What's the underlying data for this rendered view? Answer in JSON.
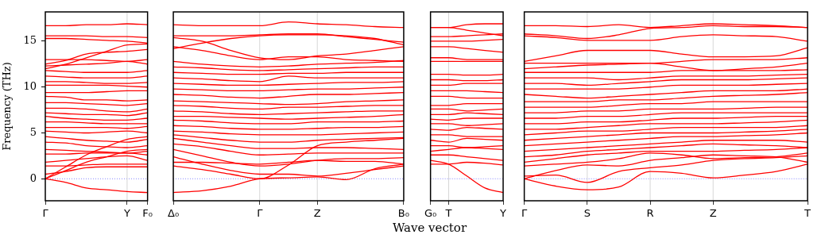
{
  "chart_data": [
    {
      "type": "line",
      "ylabel": "Frequency (THz)",
      "color": "#ff0000",
      "ylim": [
        -2.4,
        18.2
      ],
      "yticks": [
        0,
        5,
        10,
        15
      ],
      "categories": [
        "Γ",
        null,
        null,
        null,
        "Y",
        "F₀"
      ],
      "ref_lines": [
        {
          "axis": "y",
          "value": 0,
          "color": "#6666ff",
          "line_style": "dotted"
        },
        {
          "axis": "x",
          "value": "Y",
          "color": "#cccccc",
          "line_style": "solid"
        }
      ],
      "series": [
        {
          "values": [
            0,
            -0.4,
            -1.0,
            -1.2,
            -1.4,
            -1.5
          ]
        },
        {
          "values": [
            0,
            0.9,
            1.8,
            2.4,
            3.0,
            3.2
          ]
        },
        {
          "values": [
            0,
            1.3,
            2.6,
            3.5,
            4.3,
            4.6
          ]
        },
        {
          "values": [
            0.5,
            0.8,
            1.2,
            1.3,
            1.3,
            1.3
          ]
        },
        {
          "values": [
            1.4,
            1.4,
            1.5,
            1.6,
            1.6,
            1.6
          ]
        },
        {
          "values": [
            1.8,
            2.0,
            2.2,
            2.4,
            2.5,
            2.0
          ]
        },
        {
          "values": [
            2.7,
            2.7,
            2.8,
            2.8,
            2.8,
            2.6
          ]
        },
        {
          "values": [
            3.2,
            3.1,
            3.0,
            2.9,
            2.8,
            3.0
          ]
        },
        {
          "values": [
            4.0,
            3.9,
            3.6,
            3.5,
            3.4,
            3.6
          ]
        },
        {
          "values": [
            4.6,
            4.4,
            4.2,
            4.1,
            4.0,
            4.3
          ]
        },
        {
          "values": [
            5.2,
            5.1,
            5.0,
            5.1,
            5.2,
            5.0
          ]
        },
        {
          "values": [
            5.6,
            5.6,
            5.6,
            5.6,
            5.5,
            5.7
          ]
        },
        {
          "values": [
            6.2,
            6.2,
            6.1,
            6.0,
            6.0,
            6.0
          ]
        },
        {
          "values": [
            6.8,
            6.6,
            6.5,
            6.4,
            6.4,
            6.6
          ]
        },
        {
          "values": [
            7.2,
            7.1,
            7.0,
            7.0,
            6.9,
            7.2
          ]
        },
        {
          "values": [
            7.7,
            7.7,
            7.6,
            7.4,
            7.3,
            7.6
          ]
        },
        {
          "values": [
            8.3,
            8.3,
            8.2,
            8.1,
            8.0,
            8.2
          ]
        },
        {
          "values": [
            9.0,
            8.9,
            8.6,
            8.6,
            8.5,
            8.6
          ]
        },
        {
          "values": [
            9.4,
            9.4,
            9.4,
            9.5,
            9.6,
            9.6
          ]
        },
        {
          "values": [
            10.2,
            10.2,
            10.2,
            10.2,
            10.1,
            10.0
          ]
        },
        {
          "values": [
            10.6,
            10.6,
            10.5,
            10.4,
            10.4,
            10.5
          ]
        },
        {
          "values": [
            11.2,
            11.1,
            11.0,
            11.0,
            11.0,
            11.2
          ]
        },
        {
          "values": [
            11.8,
            11.7,
            11.6,
            11.6,
            11.6,
            11.8
          ]
        },
        {
          "values": [
            12.3,
            12.4,
            12.5,
            12.6,
            12.8,
            12.5
          ]
        },
        {
          "values": [
            13.0,
            13.0,
            13.0,
            12.9,
            12.8,
            13.0
          ]
        },
        {
          "values": [
            12.0,
            12.5,
            13.2,
            13.9,
            14.6,
            14.7
          ]
        },
        {
          "values": [
            12.5,
            12.9,
            13.6,
            13.8,
            13.9,
            14.1
          ]
        },
        {
          "values": [
            15.3,
            15.3,
            15.2,
            15.1,
            15.0,
            14.8
          ]
        },
        {
          "values": [
            15.6,
            15.6,
            15.6,
            15.5,
            15.5,
            15.4
          ]
        },
        {
          "values": [
            16.7,
            16.7,
            16.8,
            16.8,
            16.9,
            16.8
          ]
        }
      ]
    },
    {
      "type": "line",
      "color": "#ff0000",
      "tick_labels": "x",
      "ylim": [
        -2.4,
        18.2
      ],
      "yticks": [
        0,
        5,
        10,
        15
      ],
      "categories": [
        "Δ₀",
        null,
        null,
        "Γ",
        null,
        "Z",
        null,
        null,
        "B₀"
      ],
      "ref_lines": [
        {
          "axis": "y",
          "value": 0,
          "color": "#6666ff",
          "line_style": "dotted"
        },
        {
          "axis": "x",
          "value": "Γ",
          "color": "#cccccc",
          "line_style": "solid"
        },
        {
          "axis": "x",
          "value": "Z",
          "color": "#cccccc",
          "line_style": "solid"
        }
      ],
      "series": [
        {
          "values": [
            -1.5,
            -1.3,
            -0.8,
            0,
            0.1,
            0.2,
            -0.1,
            1.1,
            1.6
          ]
        },
        {
          "values": [
            1.4,
            1.0,
            0.5,
            0,
            1.5,
            3.6,
            4.0,
            4.2,
            4.4
          ]
        },
        {
          "values": [
            2.4,
            1.6,
            0.9,
            0.5,
            0.5,
            0.3,
            0.6,
            1.0,
            1.4
          ]
        },
        {
          "values": [
            3.2,
            2.5,
            1.8,
            1.4,
            1.6,
            2.0,
            2.2,
            2.2,
            2.3
          ]
        },
        {
          "values": [
            1.8,
            1.8,
            1.7,
            1.6,
            1.8,
            2.0,
            1.9,
            1.9,
            1.6
          ]
        },
        {
          "values": [
            3.8,
            3.5,
            3.0,
            2.6,
            2.7,
            2.8,
            2.8,
            2.8,
            2.8
          ]
        },
        {
          "values": [
            4.4,
            4.0,
            3.6,
            3.3,
            3.3,
            3.4,
            3.4,
            3.3,
            3.2
          ]
        },
        {
          "values": [
            4.8,
            4.5,
            4.2,
            4.0,
            4.0,
            4.2,
            4.3,
            4.4,
            4.5
          ]
        },
        {
          "values": [
            5.2,
            5.1,
            4.9,
            4.8,
            4.8,
            4.8,
            4.9,
            5.0,
            5.1
          ]
        },
        {
          "values": [
            5.8,
            5.7,
            5.5,
            5.4,
            5.4,
            5.5,
            5.6,
            5.6,
            5.7
          ]
        },
        {
          "values": [
            6.4,
            6.3,
            6.1,
            6.0,
            6.0,
            6.2,
            6.2,
            6.2,
            6.3
          ]
        },
        {
          "values": [
            6.8,
            6.8,
            6.7,
            6.6,
            6.5,
            6.6,
            6.7,
            6.8,
            7.0
          ]
        },
        {
          "values": [
            7.4,
            7.3,
            7.1,
            7.0,
            7.1,
            7.2,
            7.3,
            7.4,
            7.4
          ]
        },
        {
          "values": [
            8.0,
            7.9,
            7.7,
            7.6,
            7.8,
            7.8,
            7.9,
            8.0,
            8.0
          ]
        },
        {
          "values": [
            8.5,
            8.4,
            8.3,
            8.2,
            8.1,
            8.2,
            8.4,
            8.5,
            8.6
          ]
        },
        {
          "values": [
            9.2,
            9.1,
            8.9,
            8.8,
            9.0,
            9.2,
            9.2,
            9.3,
            9.4
          ]
        },
        {
          "values": [
            9.8,
            9.7,
            9.6,
            9.6,
            9.7,
            9.8,
            9.8,
            9.9,
            10.0
          ]
        },
        {
          "values": [
            10.4,
            10.3,
            10.2,
            10.2,
            10.3,
            10.4,
            10.5,
            10.5,
            10.6
          ]
        },
        {
          "values": [
            11.0,
            10.9,
            10.7,
            10.6,
            11.2,
            11.0,
            11.0,
            11.0,
            11.0
          ]
        },
        {
          "values": [
            11.6,
            11.5,
            11.4,
            11.4,
            11.5,
            11.5,
            11.6,
            11.6,
            11.6
          ]
        },
        {
          "values": [
            12.2,
            12.1,
            11.9,
            11.8,
            11.9,
            12.0,
            12.1,
            12.2,
            12.2
          ]
        },
        {
          "values": [
            12.8,
            12.5,
            12.3,
            12.2,
            12.3,
            12.5,
            12.6,
            12.7,
            12.9
          ]
        },
        {
          "values": [
            14.4,
            14.0,
            13.4,
            13.0,
            13.3,
            13.3,
            13.0,
            12.9,
            12.8
          ]
        },
        {
          "values": [
            15.4,
            15.0,
            14.0,
            13.2,
            13.0,
            13.4,
            13.6,
            14.0,
            14.4
          ]
        },
        {
          "values": [
            14.2,
            14.8,
            15.3,
            15.6,
            15.7,
            15.7,
            15.6,
            15.3,
            14.6
          ]
        },
        {
          "values": [
            15.6,
            15.6,
            15.6,
            15.7,
            15.8,
            15.8,
            15.5,
            15.2,
            14.9
          ]
        },
        {
          "values": [
            16.8,
            16.7,
            16.7,
            16.7,
            17.1,
            16.9,
            16.8,
            16.6,
            16.5
          ]
        }
      ]
    },
    {
      "type": "line",
      "xlabel": "Wave vector",
      "color": "#ff0000",
      "tick_labels": "x",
      "ylim": [
        -2.4,
        18.2
      ],
      "yticks": [
        0,
        5,
        10,
        15
      ],
      "categories": [
        "G₀",
        "T",
        null,
        null,
        "Y"
      ],
      "ref_lines": [
        {
          "axis": "y",
          "value": 0,
          "color": "#6666ff",
          "line_style": "dotted"
        },
        {
          "axis": "x",
          "value": "T",
          "color": "#cccccc",
          "line_style": "solid"
        }
      ],
      "series": [
        {
          "values": [
            2.0,
            1.6,
            0.3,
            -1.0,
            -1.5
          ]
        },
        {
          "values": [
            1.6,
            1.6,
            1.8,
            1.7,
            1.5
          ]
        },
        {
          "values": [
            2.6,
            2.6,
            2.4,
            2.2,
            2.0
          ]
        },
        {
          "values": [
            3.0,
            3.2,
            3.4,
            3.3,
            3.2
          ]
        },
        {
          "values": [
            3.6,
            3.6,
            3.4,
            3.5,
            3.6
          ]
        },
        {
          "values": [
            4.2,
            4.0,
            4.4,
            4.3,
            4.2
          ]
        },
        {
          "values": [
            4.8,
            4.8,
            4.6,
            4.6,
            4.6
          ]
        },
        {
          "values": [
            5.4,
            5.3,
            5.6,
            5.5,
            5.4
          ]
        },
        {
          "values": [
            6.0,
            6.0,
            5.8,
            5.9,
            6.0
          ]
        },
        {
          "values": [
            6.5,
            6.4,
            6.6,
            6.6,
            6.6
          ]
        },
        {
          "values": [
            7.0,
            7.0,
            7.2,
            7.1,
            7.0
          ]
        },
        {
          "values": [
            7.6,
            7.6,
            7.4,
            7.5,
            7.6
          ]
        },
        {
          "values": [
            8.0,
            8.0,
            8.2,
            8.2,
            8.2
          ]
        },
        {
          "values": [
            9.0,
            9.0,
            8.8,
            8.8,
            8.8
          ]
        },
        {
          "values": [
            9.6,
            9.6,
            9.6,
            9.5,
            9.4
          ]
        },
        {
          "values": [
            10.2,
            10.2,
            10.4,
            10.4,
            10.4
          ]
        },
        {
          "values": [
            10.8,
            10.8,
            10.7,
            10.7,
            10.8
          ]
        },
        {
          "values": [
            11.4,
            11.4,
            11.3,
            11.3,
            11.4
          ]
        },
        {
          "values": [
            12.8,
            12.8,
            12.8,
            12.8,
            12.8
          ]
        },
        {
          "values": [
            13.2,
            13.2,
            13.0,
            13.0,
            13.0
          ]
        },
        {
          "values": [
            14.4,
            14.4,
            14.2,
            14.0,
            13.8
          ]
        },
        {
          "values": [
            15.0,
            15.0,
            15.0,
            15.1,
            15.2
          ]
        },
        {
          "values": [
            15.5,
            15.5,
            15.6,
            15.7,
            15.8
          ]
        },
        {
          "values": [
            16.5,
            16.5,
            16.2,
            15.9,
            15.6
          ]
        },
        {
          "values": [
            16.5,
            16.5,
            16.8,
            16.9,
            16.9
          ]
        }
      ]
    },
    {
      "type": "line",
      "color": "#ff0000",
      "tick_labels": "x",
      "ylim": [
        -2.4,
        18.2
      ],
      "yticks": [
        0,
        5,
        10,
        15
      ],
      "categories": [
        "Γ",
        null,
        "S",
        null,
        "R",
        null,
        "Z",
        null,
        null,
        "T"
      ],
      "ref_lines": [
        {
          "axis": "y",
          "value": 0,
          "color": "#6666ff",
          "line_style": "dotted"
        },
        {
          "axis": "x",
          "value": "S",
          "color": "#cccccc",
          "line_style": "solid"
        },
        {
          "axis": "x",
          "value": "R",
          "color": "#cccccc",
          "line_style": "solid"
        },
        {
          "axis": "x",
          "value": "Z",
          "color": "#cccccc",
          "line_style": "solid"
        }
      ],
      "series": [
        {
          "values": [
            0,
            -0.8,
            -1.2,
            -0.9,
            0.8,
            0.6,
            0.1,
            0.4,
            0.8,
            1.6
          ]
        },
        {
          "values": [
            0.3,
            0.4,
            -0.4,
            0.8,
            1.2,
            1.5,
            2.0,
            2.2,
            2.3,
            2.5
          ]
        },
        {
          "values": [
            0,
            0.9,
            1.5,
            1.4,
            2.0,
            2.3,
            2.6,
            2.5,
            2.4,
            1.8
          ]
        },
        {
          "values": [
            1.4,
            1.6,
            1.8,
            2.2,
            2.8,
            2.6,
            2.2,
            2.3,
            2.4,
            2.8
          ]
        },
        {
          "values": [
            1.8,
            2.2,
            2.6,
            2.8,
            3.0,
            3.0,
            3.0,
            3.1,
            3.2,
            3.4
          ]
        },
        {
          "values": [
            2.4,
            2.6,
            3.0,
            3.2,
            3.4,
            3.6,
            3.8,
            3.7,
            3.6,
            3.4
          ]
        },
        {
          "values": [
            3.0,
            3.2,
            3.4,
            3.6,
            3.8,
            4.0,
            4.2,
            4.2,
            4.2,
            4.0
          ]
        },
        {
          "values": [
            3.6,
            3.8,
            4.0,
            4.2,
            4.4,
            4.6,
            4.6,
            4.7,
            4.8,
            5.0
          ]
        },
        {
          "values": [
            4.2,
            4.4,
            4.6,
            4.8,
            5.0,
            5.0,
            5.0,
            5.1,
            5.2,
            5.4
          ]
        },
        {
          "values": [
            4.8,
            5.0,
            5.2,
            5.2,
            5.4,
            5.6,
            5.6,
            5.6,
            5.6,
            5.8
          ]
        },
        {
          "values": [
            5.4,
            5.4,
            5.6,
            5.8,
            6.0,
            6.0,
            6.0,
            6.1,
            6.2,
            6.4
          ]
        },
        {
          "values": [
            6.0,
            6.0,
            6.2,
            6.2,
            6.4,
            6.6,
            6.6,
            6.7,
            6.8,
            6.8
          ]
        },
        {
          "values": [
            6.6,
            6.6,
            6.8,
            6.8,
            7.0,
            7.2,
            7.2,
            7.2,
            7.2,
            7.2
          ]
        },
        {
          "values": [
            7.2,
            7.2,
            7.4,
            7.4,
            7.6,
            7.6,
            7.6,
            7.7,
            7.8,
            7.8
          ]
        },
        {
          "values": [
            7.8,
            7.8,
            7.8,
            8.0,
            8.2,
            8.2,
            8.4,
            8.4,
            8.4,
            8.4
          ]
        },
        {
          "values": [
            8.4,
            8.4,
            8.4,
            8.6,
            8.6,
            8.8,
            9.0,
            9.1,
            9.2,
            9.4
          ]
        },
        {
          "values": [
            9.2,
            9.0,
            8.8,
            9.0,
            9.2,
            9.4,
            9.6,
            9.6,
            9.6,
            9.8
          ]
        },
        {
          "values": [
            9.8,
            9.8,
            9.8,
            9.8,
            10.0,
            10.2,
            10.2,
            10.2,
            10.3,
            10.4
          ]
        },
        {
          "values": [
            10.4,
            10.4,
            10.2,
            10.4,
            10.6,
            10.8,
            10.8,
            10.8,
            10.9,
            11.0
          ]
        },
        {
          "values": [
            11.0,
            11.0,
            11.0,
            10.8,
            11.0,
            11.2,
            11.2,
            11.2,
            11.3,
            11.4
          ]
        },
        {
          "values": [
            11.6,
            11.6,
            11.6,
            11.6,
            11.6,
            11.8,
            11.8,
            11.8,
            11.8,
            11.9
          ]
        },
        {
          "values": [
            12.0,
            12.2,
            12.4,
            12.5,
            12.6,
            12.2,
            11.8,
            12.0,
            12.2,
            12.6
          ]
        },
        {
          "values": [
            12.6,
            12.6,
            12.6,
            12.6,
            12.6,
            12.8,
            13.0,
            13.0,
            13.0,
            13.2
          ]
        },
        {
          "values": [
            12.8,
            13.4,
            14.0,
            14.0,
            14.0,
            13.6,
            13.3,
            13.3,
            13.4,
            14.3
          ]
        },
        {
          "values": [
            15.6,
            15.4,
            15.1,
            15.1,
            15.1,
            15.5,
            15.7,
            15.6,
            15.5,
            15.0
          ]
        },
        {
          "values": [
            15.8,
            15.6,
            15.3,
            15.7,
            16.4,
            16.5,
            16.7,
            16.6,
            16.6,
            16.5
          ]
        },
        {
          "values": [
            16.7,
            16.7,
            16.6,
            16.8,
            16.5,
            16.7,
            16.9,
            16.8,
            16.7,
            16.5
          ]
        }
      ]
    }
  ]
}
